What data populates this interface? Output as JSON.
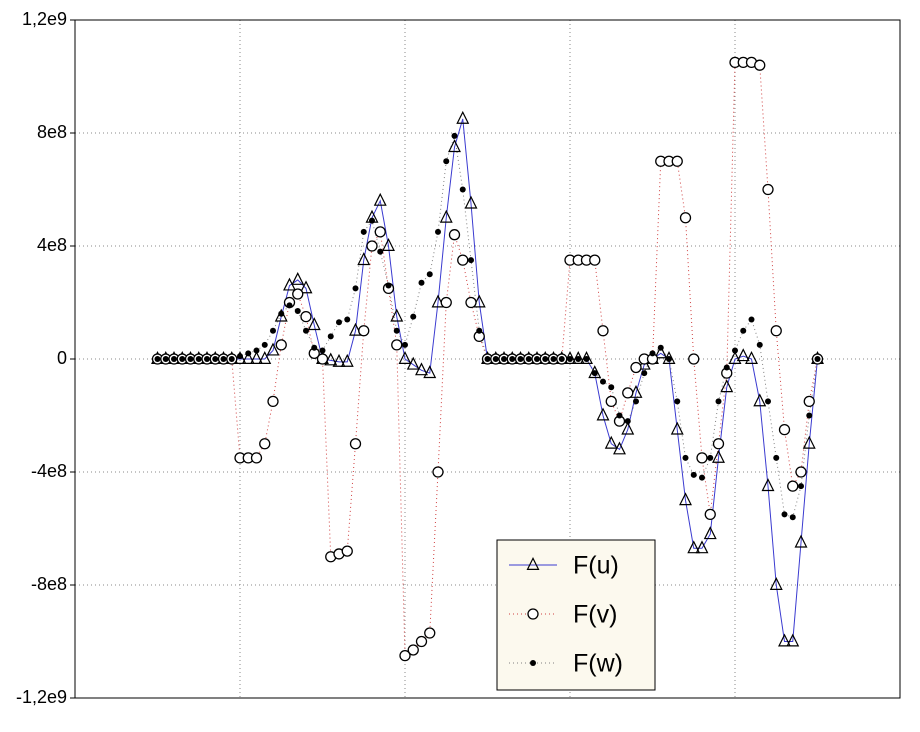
{
  "chart_data": {
    "type": "line",
    "x": [
      0.5,
      0.55,
      0.6,
      0.65,
      0.7,
      0.75,
      0.8,
      0.85,
      0.9,
      0.95,
      1,
      1.05,
      1.1,
      1.15,
      1.2,
      1.25,
      1.3,
      1.35,
      1.4,
      1.45,
      1.5,
      1.55,
      1.6,
      1.65,
      1.7,
      1.75,
      1.8,
      1.85,
      1.9,
      1.95,
      2,
      2.05,
      2.1,
      2.15,
      2.2,
      2.25,
      2.3,
      2.35,
      2.4,
      2.45,
      2.5,
      2.55,
      2.6,
      2.65,
      2.7,
      2.75,
      2.8,
      2.85,
      2.9,
      2.95,
      3,
      3.05,
      3.1,
      3.15,
      3.2,
      3.25,
      3.3,
      3.35,
      3.4,
      3.45,
      3.5,
      3.55,
      3.6,
      3.65,
      3.7,
      3.75,
      3.8,
      3.85,
      3.9,
      3.95,
      4,
      4.05,
      4.1,
      4.15,
      4.2,
      4.25,
      4.3,
      4.35,
      4.4,
      4.45,
      4.5
    ],
    "series": [
      {
        "name": "F(u)",
        "color": "#3a3ad0",
        "line_style": "solid",
        "marker": "triangle",
        "values": [
          0,
          0,
          0,
          0,
          0,
          0,
          0,
          0,
          0,
          0,
          0,
          0,
          0,
          0,
          30000000.0,
          150000000.0,
          260000000.0,
          280000000.0,
          250000000.0,
          120000000.0,
          0,
          -5000000.0,
          -10000000.0,
          -10000000.0,
          100000000.0,
          350000000.0,
          500000000.0,
          560000000.0,
          400000000.0,
          150000000.0,
          0,
          -20000000.0,
          -40000000.0,
          -50000000.0,
          200000000.0,
          500000000.0,
          750000000.0,
          850000000.0,
          550000000.0,
          200000000.0,
          0,
          0,
          0,
          0,
          0,
          0,
          0,
          0,
          0,
          0,
          0,
          0,
          0,
          -50000000.0,
          -200000000.0,
          -300000000.0,
          -320000000.0,
          -250000000.0,
          -120000000.0,
          -20000000.0,
          0,
          20000000.0,
          0,
          -250000000.0,
          -500000000.0,
          -670000000.0,
          -670000000.0,
          -620000000.0,
          -350000000.0,
          -100000000.0,
          0,
          10000000.0,
          0,
          -150000000.0,
          -450000000.0,
          -800000000.0,
          -1000000000.0,
          -1000000000.0,
          -650000000.0,
          -300000000.0,
          0
        ]
      },
      {
        "name": "F(v)",
        "color": "#d04040",
        "line_style": "dotted",
        "marker": "circle",
        "values": [
          0,
          0,
          0,
          0,
          0,
          0,
          0,
          0,
          0,
          0,
          -350000000.0,
          -350000000.0,
          -350000000.0,
          -300000000.0,
          -150000000.0,
          50000000.0,
          200000000.0,
          230000000.0,
          150000000.0,
          20000000.0,
          0,
          -700000000.0,
          -690000000.0,
          -680000000.0,
          -300000000.0,
          100000000.0,
          400000000.0,
          450000000.0,
          250000000.0,
          50000000.0,
          -1050000000.0,
          -1030000000.0,
          -1000000000.0,
          -970000000.0,
          -400000000.0,
          200000000.0,
          440000000.0,
          350000000.0,
          200000000.0,
          80000000.0,
          0,
          0,
          0,
          0,
          0,
          0,
          0,
          0,
          0,
          0,
          350000000.0,
          350000000.0,
          350000000.0,
          350000000.0,
          100000000.0,
          -150000000.0,
          -220000000.0,
          -120000000.0,
          -30000000.0,
          0,
          0,
          700000000.0,
          700000000.0,
          700000000.0,
          500000000.0,
          0,
          -350000000.0,
          -550000000.0,
          -300000000.0,
          -50000000.0,
          1050000000.0,
          1050000000.0,
          1050000000.0,
          1040000000.0,
          600000000.0,
          100000000.0,
          -250000000.0,
          -450000000.0,
          -400000000.0,
          -150000000.0,
          0
        ]
      },
      {
        "name": "F(w)",
        "color": "#808080",
        "line_style": "dotted",
        "marker": "dot",
        "values": [
          0,
          0,
          0,
          0,
          0,
          0,
          0,
          0,
          0,
          0,
          10000000.0,
          20000000.0,
          30000000.0,
          50000000.0,
          100000000.0,
          160000000.0,
          190000000.0,
          170000000.0,
          100000000.0,
          40000000.0,
          30000000.0,
          80000000.0,
          130000000.0,
          140000000.0,
          250000000.0,
          450000000.0,
          490000000.0,
          380000000.0,
          260000000.0,
          100000000.0,
          50000000.0,
          150000000.0,
          270000000.0,
          300000000.0,
          450000000.0,
          700000000.0,
          790000000.0,
          600000000.0,
          350000000.0,
          100000000.0,
          0,
          0,
          0,
          0,
          0,
          0,
          0,
          0,
          0,
          0,
          0,
          0,
          0,
          -50000000.0,
          -80000000.0,
          -100000000.0,
          -200000000.0,
          -220000000.0,
          -150000000.0,
          -50000000.0,
          20000000.0,
          40000000.0,
          0,
          -150000000.0,
          -350000000.0,
          -410000000.0,
          -420000000.0,
          -350000000.0,
          -150000000.0,
          -30000000.0,
          30000000.0,
          100000000.0,
          140000000.0,
          50000000.0,
          -150000000.0,
          -350000000.0,
          -550000000.0,
          -560000000.0,
          -450000000.0,
          -200000000.0,
          0
        ]
      }
    ],
    "xlim": [
      0,
      5
    ],
    "xgrid": [
      1,
      2,
      3,
      4
    ],
    "ylim": [
      -1200000000.0,
      1200000000.0
    ],
    "yticks": [
      {
        "value": -1200000000.0,
        "label": "-1,2e9"
      },
      {
        "value": -800000000.0,
        "label": "-8e8"
      },
      {
        "value": -400000000.0,
        "label": "-4e8"
      },
      0,
      {
        "value": 400000000.0,
        "label": "4e8"
      },
      {
        "value": 800000000.0,
        "label": "8e8"
      },
      {
        "value": 1200000000.0,
        "label": "1,2e9"
      }
    ],
    "grid": true,
    "legend": "lower center"
  }
}
